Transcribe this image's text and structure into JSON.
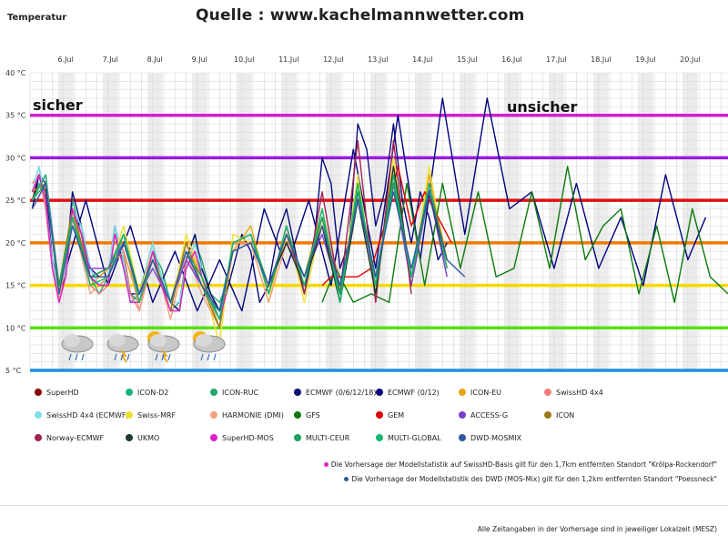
{
  "source_label": "Quelle : www.kachelmannwetter.com",
  "chart_data": {
    "type": "line",
    "ylabel": "Temperatur",
    "ylim": [
      5,
      40
    ],
    "y_ticks": [
      "5 °C",
      "10 °C",
      "15 °C",
      "20 °C",
      "25 °C",
      "30 °C",
      "35 °C",
      "40 °C"
    ],
    "x_ticks": [
      "6.Jul",
      "7.Jul",
      "8.Jul",
      "9.Jul",
      "10.Jul",
      "11.Jul",
      "12.Jul",
      "13.Jul",
      "14.Jul",
      "15.Jul",
      "16.Jul",
      "17.Jul",
      "18.Jul",
      "19.Jul",
      "20.Jul"
    ],
    "x_range_days": [
      5.25,
      20.9
    ],
    "annotations": {
      "left": "sicher",
      "right": "unsicher"
    },
    "threshold_lines": [
      {
        "value": 35,
        "color": "#d21fd2"
      },
      {
        "value": 30,
        "color": "#9b1bdc"
      },
      {
        "value": 25,
        "color": "#e01010"
      },
      {
        "value": 20,
        "color": "#f07a00"
      },
      {
        "value": 15,
        "color": "#f5d800"
      },
      {
        "value": 10,
        "color": "#55e012"
      },
      {
        "value": 5,
        "color": "#1e8fe0"
      }
    ],
    "weather_icons": [
      "rain-cloud-icon",
      "thunder-cloud-icon",
      "sun-thunder-cloud-icon",
      "sun-rain-cloud-icon",
      "rain-cloud-icon"
    ],
    "series": [
      {
        "name": "SuperHD",
        "color": "#8b0000",
        "x": [
          5.3,
          5.45,
          5.6,
          5.75,
          5.9,
          6.05,
          6.2,
          6.4,
          6.6,
          6.8,
          7.0,
          7.15,
          7.35,
          7.5,
          7.7,
          7.85,
          8.0,
          8.2,
          8.4,
          8.6,
          8.75,
          8.95,
          9.1,
          9.3,
          9.5,
          9.65
        ],
        "y": [
          25,
          28,
          26,
          18,
          14,
          16,
          24,
          22,
          16,
          15,
          16,
          21,
          18,
          14,
          13,
          16,
          19,
          16,
          13,
          12,
          17,
          20,
          17,
          14,
          12,
          15
        ]
      },
      {
        "name": "ICON-D2",
        "color": "#19b37a",
        "x": [
          5.3,
          5.45,
          5.6,
          5.75,
          5.9,
          6.05,
          6.2,
          6.4,
          6.6,
          6.8,
          7.0,
          7.15,
          7.35,
          7.5,
          7.7,
          7.85,
          8.0,
          8.2,
          8.4,
          8.6,
          8.75,
          8.95,
          9.1,
          9.3,
          9.5,
          9.65
        ],
        "y": [
          26,
          29,
          24,
          17,
          14,
          17,
          25,
          21,
          16,
          14,
          16,
          22,
          17,
          13,
          14,
          17,
          20,
          15,
          12,
          13,
          18,
          21,
          16,
          13,
          12,
          16
        ]
      },
      {
        "name": "ICON-RUC",
        "color": "#21a86b",
        "x": [
          5.3,
          5.45,
          5.6,
          5.75,
          5.9,
          6.05,
          6.2,
          6.4,
          6.6,
          6.8,
          7.0,
          7.15,
          7.35,
          7.5,
          7.7,
          7.85,
          8.0,
          8.2,
          8.4,
          8.6,
          8.75,
          8.95,
          9.1,
          9.3,
          9.5,
          9.65
        ],
        "y": [
          25,
          27,
          25,
          18,
          15,
          16,
          23,
          22,
          17,
          15,
          15,
          21,
          19,
          14,
          13,
          16,
          19,
          17,
          13,
          12,
          17,
          20,
          18,
          14,
          13,
          15
        ]
      },
      {
        "name": "ECMWF (0/6/12/18)",
        "color": "#0a0a7a",
        "x": [
          5.3,
          5.45,
          5.6,
          5.75,
          5.9,
          6.05,
          6.2,
          6.4,
          6.6,
          6.8,
          7.0,
          7.15,
          7.35,
          7.5,
          7.7,
          7.85,
          8.0,
          8.2,
          8.4,
          8.6,
          8.75,
          8.95,
          9.1,
          9.3,
          9.5,
          9.65,
          9.8,
          10.0,
          10.2,
          10.4,
          10.6,
          10.8,
          11.0,
          11.2,
          11.4,
          11.6,
          11.8,
          12.0,
          12.2,
          12.4,
          12.6,
          12.8,
          13.0,
          13.2,
          13.4,
          13.6,
          13.8,
          14.0,
          14.2,
          14.4,
          14.6
        ],
        "y": [
          24,
          28,
          27,
          18,
          15,
          17,
          26,
          22,
          17,
          16,
          16,
          22,
          18,
          14,
          14,
          16,
          19,
          16,
          13,
          12,
          18,
          21,
          17,
          14,
          12,
          14,
          17,
          21,
          19,
          13,
          15,
          21,
          24,
          19,
          14,
          19,
          30,
          27,
          17,
          20,
          34,
          31,
          22,
          26,
          34,
          25,
          20,
          26,
          23,
          18,
          20
        ]
      },
      {
        "name": "ECMWF (0/12)",
        "color": "#000080",
        "x": [
          6.0,
          6.5,
          7.0,
          7.5,
          8.0,
          8.5,
          9.0,
          9.5,
          10.0,
          10.5,
          11.0,
          11.5,
          12.0,
          12.5,
          13.0,
          13.5,
          14.0,
          14.5,
          15.0,
          15.5,
          16.0,
          16.5,
          17.0,
          17.5,
          18.0,
          18.5,
          19.0,
          19.5,
          20.0,
          20.4
        ],
        "y": [
          16,
          25,
          15,
          22,
          13,
          19,
          12,
          18,
          12,
          24,
          17,
          25,
          15,
          31,
          17,
          35,
          18,
          37,
          21,
          37,
          24,
          26,
          17,
          27,
          17,
          23,
          15,
          28,
          18,
          23
        ]
      },
      {
        "name": "ICON-EU",
        "color": "#e7a316",
        "x": [
          5.3,
          5.6,
          5.9,
          6.2,
          6.6,
          7.0,
          7.35,
          7.7,
          8.0,
          8.4,
          8.75,
          9.1,
          9.5,
          9.8,
          10.2,
          10.6,
          11.0,
          11.4,
          11.8,
          12.2,
          12.6,
          13.0,
          13.4,
          13.8,
          14.2,
          14.6
        ],
        "y": [
          26,
          27,
          14,
          24,
          15,
          17,
          19,
          13,
          18,
          13,
          20,
          16,
          10,
          19,
          22,
          14,
          21,
          16,
          24,
          14,
          27,
          15,
          29,
          16,
          28,
          18
        ]
      },
      {
        "name": "SwissHD 4x4",
        "color": "#f27d7d",
        "x": [
          5.3,
          5.45,
          5.6,
          5.75,
          5.9,
          6.05,
          6.2,
          6.4,
          6.6,
          6.8,
          7.0,
          7.15,
          7.35,
          7.5,
          7.7,
          7.85,
          8.0,
          8.2,
          8.4,
          8.6,
          8.75,
          8.95,
          9.1
        ],
        "y": [
          27,
          28,
          24,
          17,
          13,
          16,
          23,
          21,
          15,
          14,
          15,
          21,
          19,
          14,
          12,
          15,
          19,
          15,
          12,
          12,
          18,
          19,
          16
        ]
      },
      {
        "name": "SwissHD 4x4 (ECMWF)",
        "color": "#7fdde8",
        "x": [
          5.3,
          5.45,
          5.6,
          5.75,
          5.9,
          6.05,
          6.2,
          6.4,
          6.6,
          6.8,
          7.0,
          7.15,
          7.35,
          7.5,
          7.7,
          7.85,
          8.0,
          8.2,
          8.4,
          8.6,
          8.75,
          8.95,
          9.1
        ],
        "y": [
          26,
          29,
          25,
          18,
          14,
          17,
          24,
          22,
          17,
          15,
          16,
          22,
          18,
          13,
          13,
          17,
          20,
          16,
          13,
          13,
          17,
          20,
          17
        ]
      },
      {
        "name": "Swiss-MRF",
        "color": "#f0e030",
        "x": [
          5.3,
          5.6,
          5.9,
          6.2,
          6.6,
          7.0,
          7.35,
          7.7,
          8.0,
          8.4,
          8.75,
          9.1,
          9.5,
          9.8,
          10.2,
          10.6,
          11.0,
          11.4,
          11.8,
          12.2,
          12.6,
          13.0,
          13.4,
          13.8,
          14.2,
          14.6
        ],
        "y": [
          26,
          27,
          15,
          24,
          16,
          16,
          22,
          14,
          19,
          12,
          21,
          16,
          8,
          21,
          20,
          13,
          22,
          13,
          23,
          13,
          28,
          14,
          30,
          15,
          29,
          17
        ]
      },
      {
        "name": "HARMONIE (DMI)",
        "color": "#f3a07b",
        "x": [
          5.3,
          5.6,
          5.9,
          6.2,
          6.6,
          7.0,
          7.35,
          7.7,
          8.0,
          8.4,
          8.75,
          9.1,
          9.5,
          9.8,
          10.2,
          10.6,
          11.0,
          11.4,
          11.8,
          12.2
        ],
        "y": [
          25,
          28,
          13,
          23,
          14,
          16,
          21,
          12,
          19,
          11,
          19,
          14,
          10,
          20,
          20,
          13,
          20,
          15,
          22,
          16
        ]
      },
      {
        "name": "GFS",
        "color": "#0b7a0b",
        "x": [
          11.8,
          12.1,
          12.5,
          12.9,
          13.3,
          13.7,
          14.1,
          14.5,
          14.9,
          15.3,
          15.7,
          16.1,
          16.5,
          16.9,
          17.3,
          17.7,
          18.1,
          18.5,
          18.9,
          19.3,
          19.7,
          20.1,
          20.5,
          20.9
        ],
        "y": [
          13,
          17,
          13,
          14,
          13,
          27,
          15,
          27,
          17,
          26,
          16,
          17,
          26,
          17,
          29,
          18,
          22,
          24,
          14,
          22,
          13,
          24,
          16,
          14
        ]
      },
      {
        "name": "GEM",
        "color": "#e00000",
        "x": [
          11.8,
          12.0,
          12.3,
          12.6,
          12.9,
          13.2,
          13.5,
          13.8,
          14.1,
          14.4,
          14.7
        ],
        "y": [
          15,
          16,
          16,
          16,
          17,
          22,
          29,
          22,
          26,
          23,
          20
        ]
      },
      {
        "name": "ACCESS-G",
        "color": "#7b3fd1",
        "x": [
          5.3,
          5.6,
          5.9,
          6.2,
          6.6,
          7.0,
          7.35,
          7.7,
          8.0,
          8.4,
          8.75,
          9.1,
          9.5,
          9.8,
          10.2,
          10.6,
          11.0,
          11.4,
          11.8,
          12.2,
          12.6,
          13.0,
          13.4,
          13.8,
          14.2,
          14.6
        ],
        "y": [
          25,
          28,
          15,
          22,
          17,
          17,
          20,
          14,
          17,
          13,
          18,
          15,
          12,
          19,
          20,
          15,
          20,
          16,
          21,
          14,
          26,
          15,
          27,
          15,
          26,
          16
        ]
      },
      {
        "name": "ICON",
        "color": "#9a7a1a",
        "x": [
          5.3,
          5.6,
          5.9,
          6.2,
          6.6,
          7.0,
          7.35,
          7.7,
          8.0,
          8.4,
          8.75,
          9.1,
          9.5,
          9.8,
          10.2,
          10.6,
          11.0,
          11.4,
          11.8,
          12.2,
          12.6,
          13.0,
          13.4,
          13.8,
          14.2,
          14.6
        ],
        "y": [
          26,
          27,
          15,
          24,
          16,
          17,
          21,
          13,
          18,
          12,
          20,
          15,
          10,
          20,
          21,
          14,
          21,
          15,
          23,
          13,
          27,
          15,
          28,
          16,
          27,
          18
        ]
      },
      {
        "name": "Norway-ECMWF",
        "color": "#a02050",
        "x": [
          10.6,
          11.0,
          11.4,
          11.8,
          12.2,
          12.6,
          13.0,
          13.4,
          13.8
        ],
        "y": [
          14,
          22,
          14,
          26,
          14,
          32,
          13,
          32,
          14
        ]
      },
      {
        "name": "UKMO",
        "color": "#1a3a2a",
        "x": [
          10.6,
          11.0,
          11.4,
          11.8,
          12.2,
          12.6,
          13.0,
          13.4,
          13.8,
          14.2,
          14.6
        ],
        "y": [
          15,
          20,
          15,
          22,
          13,
          25,
          14,
          29,
          16,
          26,
          17
        ]
      },
      {
        "name": "SuperHD-MOS",
        "color": "#e020c8",
        "x": [
          5.3,
          5.45,
          5.6,
          5.75,
          5.9,
          6.05,
          6.2,
          6.4,
          6.6,
          6.8,
          7.0,
          7.15,
          7.35,
          7.5,
          7.7,
          7.85,
          8.0,
          8.2,
          8.4,
          8.6,
          8.75,
          8.95,
          9.1,
          9.3,
          9.5,
          9.65
        ],
        "y": [
          26,
          28,
          25,
          17,
          13,
          16,
          24,
          21,
          16,
          15,
          15,
          21,
          17,
          13,
          13,
          16,
          19,
          15,
          12,
          12,
          17,
          19,
          16,
          13,
          11,
          14
        ]
      },
      {
        "name": "MULTI-CEUR",
        "color": "#1aa060",
        "x": [
          5.3,
          5.6,
          5.9,
          6.2,
          6.6,
          7.0,
          7.35,
          7.7,
          8.0,
          8.4,
          8.75,
          9.1,
          9.5,
          9.8,
          10.2,
          10.6,
          11.0,
          11.4,
          11.8,
          12.2,
          12.6,
          13.0,
          13.4,
          13.8,
          14.2,
          14.6
        ],
        "y": [
          25,
          27,
          15,
          23,
          16,
          17,
          21,
          14,
          18,
          13,
          19,
          16,
          11,
          20,
          21,
          15,
          21,
          16,
          23,
          14,
          26,
          16,
          27,
          16,
          26,
          18
        ]
      },
      {
        "name": "MULTI-GLOBAL",
        "color": "#14b870",
        "x": [
          5.3,
          5.6,
          5.9,
          6.2,
          6.6,
          7.0,
          7.35,
          7.7,
          8.0,
          8.4,
          8.75,
          9.1,
          9.5,
          9.8,
          10.2,
          10.6,
          11.0,
          11.4,
          11.8,
          12.2,
          12.6,
          13.0,
          13.4,
          13.8,
          14.2,
          14.6
        ],
        "y": [
          25,
          28,
          14,
          23,
          15,
          16,
          21,
          13,
          18,
          13,
          19,
          15,
          11,
          20,
          21,
          14,
          22,
          15,
          24,
          13,
          27,
          15,
          28,
          16,
          27,
          17
        ]
      },
      {
        "name": "DWD-MOSMIX",
        "color": "#2f5aa0",
        "x": [
          5.3,
          5.6,
          5.9,
          6.2,
          6.6,
          7.0,
          7.35,
          7.7,
          8.0,
          8.4,
          8.75,
          9.1,
          9.5,
          9.8,
          10.2,
          10.6,
          11.0,
          11.4,
          11.8,
          12.2,
          12.6,
          13.0,
          13.4,
          13.8,
          14.2,
          14.6,
          15.0
        ],
        "y": [
          24,
          27,
          14,
          22,
          16,
          16,
          20,
          14,
          18,
          13,
          19,
          15,
          12,
          19,
          20,
          15,
          21,
          16,
          22,
          15,
          25,
          16,
          26,
          17,
          26,
          18,
          16
        ]
      }
    ]
  },
  "legend_notes": [
    {
      "color": "#e020c8",
      "text": "Die Vorhersage der Modellstatistik auf SwissHD-Basis gilt für den 1,7km entfernten Standort \"Krölpa-Rockendorf\""
    },
    {
      "color": "#2f5aa0",
      "text": "Die Vorhersage der Modellstatistik des DWD (MOS-Mix) gilt für den 1,2km entfernten Standort \"Poessneck\""
    }
  ],
  "footnote": "Alle Zeitangaben in der Vorhersage sind in jeweiliger Lokalzeit (MESZ)"
}
